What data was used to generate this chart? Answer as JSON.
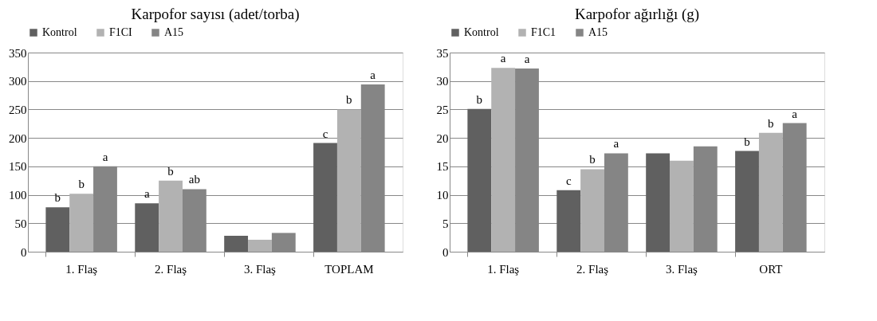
{
  "chart_data": [
    {
      "type": "bar",
      "title": "Karpofor sayısı (adet/torba)",
      "categories": [
        "1. Flaş",
        "2. Flaş",
        "3. Flaş",
        "TOPLAM"
      ],
      "ylim": [
        0,
        350
      ],
      "yticks": [
        0,
        50,
        100,
        150,
        200,
        250,
        300,
        350
      ],
      "grid": "y",
      "legend": "top",
      "series": [
        {
          "name": "Kontrol",
          "color": "#606060",
          "values": [
            78,
            85,
            28,
            191
          ],
          "value_labels": [
            "b",
            "a",
            null,
            "c"
          ]
        },
        {
          "name": "F1CI",
          "color": "#b2b2b2",
          "values": [
            102,
            125,
            21,
            250
          ],
          "value_labels": [
            "b",
            "b",
            null,
            "b"
          ]
        },
        {
          "name": "A15",
          "color": "#858585",
          "values": [
            150,
            110,
            33,
            294
          ],
          "value_labels": [
            "a",
            "ab",
            null,
            "a"
          ]
        }
      ]
    },
    {
      "type": "bar",
      "title": "Karpofor ağırlığı (g)",
      "categories": [
        "1. Flaş",
        "2. Flaş",
        "3. Flaş",
        "ORT"
      ],
      "ylim": [
        0,
        35
      ],
      "yticks": [
        0,
        5,
        10,
        15,
        20,
        25,
        30,
        35
      ],
      "grid": "y",
      "legend": "top",
      "series": [
        {
          "name": "Kontrol",
          "color": "#606060",
          "values": [
            25.1,
            10.8,
            17.3,
            17.7
          ],
          "value_labels": [
            "b",
            "c",
            null,
            "b"
          ]
        },
        {
          "name": "F1C1",
          "color": "#b2b2b2",
          "values": [
            32.3,
            14.5,
            16.0,
            20.9
          ],
          "value_labels": [
            "a",
            "b",
            null,
            "b"
          ]
        },
        {
          "name": "A15",
          "color": "#858585",
          "values": [
            32.2,
            17.3,
            18.5,
            22.6
          ],
          "value_labels": [
            "a",
            "a",
            null,
            "a"
          ]
        }
      ]
    }
  ]
}
